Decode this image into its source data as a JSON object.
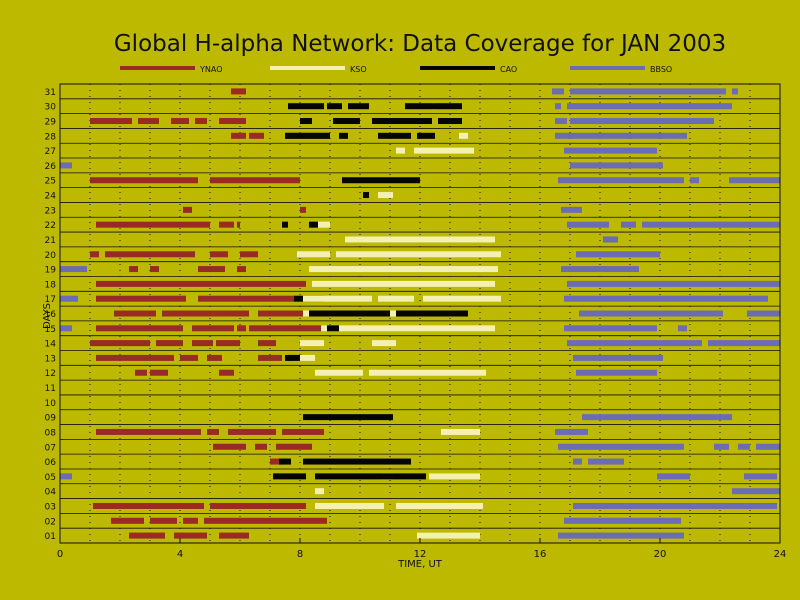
{
  "colors": {
    "background": "#bdb800",
    "YNAO": "#9a2a24",
    "KSO": "#f4f0b0",
    "CAO": "#050505",
    "BBSO": "#6b6cb4"
  },
  "chart_data": {
    "type": "timeline",
    "title": "Global H-alpha Network: Data Coverage for JAN 2003",
    "xlabel": "TIME, UT",
    "ylabel": "DAYS",
    "xlim": [
      0,
      24
    ],
    "ylim": [
      0.5,
      31.5
    ],
    "x_ticks": [
      0,
      4,
      8,
      12,
      16,
      20,
      24
    ],
    "y_tick_labels": [
      "01",
      "02",
      "03",
      "04",
      "05",
      "06",
      "07",
      "08",
      "09",
      "10",
      "11",
      "12",
      "13",
      "14",
      "15",
      "16",
      "17",
      "18",
      "19",
      "20",
      "21",
      "22",
      "23",
      "24",
      "25",
      "26",
      "27",
      "28",
      "29",
      "30",
      "31"
    ],
    "grid": "vertical-dotted-every-hour, horizontal-solid-every-day",
    "legend_placement": "top",
    "legend": [
      "YNAO",
      "KSO",
      "CAO",
      "BBSO"
    ],
    "series": [
      {
        "name": "YNAO",
        "intervals": {
          "1": [
            [
              2.3,
              3.5
            ],
            [
              3.8,
              4.9
            ],
            [
              5.3,
              6.3
            ]
          ],
          "2": [
            [
              1.7,
              2.8
            ],
            [
              3.0,
              3.9
            ],
            [
              4.1,
              4.6
            ],
            [
              4.8,
              8.9
            ]
          ],
          "3": [
            [
              1.1,
              4.8
            ],
            [
              5.0,
              8.2
            ]
          ],
          "6": [
            [
              7.0,
              7.5
            ]
          ],
          "7": [
            [
              5.1,
              6.2
            ],
            [
              6.5,
              6.9
            ],
            [
              7.2,
              8.4
            ]
          ],
          "8": [
            [
              1.2,
              4.7
            ],
            [
              4.9,
              5.3
            ],
            [
              5.6,
              7.2
            ],
            [
              7.4,
              8.8
            ]
          ],
          "12": [
            [
              2.5,
              2.9
            ],
            [
              3.0,
              3.6
            ],
            [
              5.3,
              5.8
            ]
          ],
          "13": [
            [
              1.2,
              3.8
            ],
            [
              4.0,
              4.6
            ],
            [
              4.9,
              5.4
            ],
            [
              6.6,
              7.4
            ],
            [
              7.6,
              8.1
            ]
          ],
          "14": [
            [
              1.0,
              3.0
            ],
            [
              3.2,
              4.1
            ],
            [
              4.4,
              5.1
            ],
            [
              5.2,
              6.0
            ],
            [
              6.6,
              7.2
            ]
          ],
          "15": [
            [
              1.2,
              4.1
            ],
            [
              4.4,
              5.8
            ],
            [
              5.9,
              6.2
            ],
            [
              6.3,
              8.8
            ]
          ],
          "16": [
            [
              1.8,
              3.2
            ],
            [
              3.4,
              6.3
            ],
            [
              6.6,
              8.8
            ]
          ],
          "17": [
            [
              1.2,
              4.2
            ],
            [
              4.6,
              8.8
            ]
          ],
          "18": [
            [
              1.2,
              8.2
            ]
          ],
          "19": [
            [
              2.3,
              2.6
            ],
            [
              3.0,
              3.3
            ],
            [
              4.6,
              5.5
            ],
            [
              5.9,
              6.2
            ]
          ],
          "20": [
            [
              1.0,
              1.3
            ],
            [
              1.5,
              4.5
            ],
            [
              5.0,
              5.6
            ],
            [
              6.0,
              6.6
            ]
          ],
          "22": [
            [
              1.2,
              5.0
            ],
            [
              5.3,
              5.8
            ],
            [
              5.9,
              6.0
            ]
          ],
          "23": [
            [
              4.1,
              4.4
            ],
            [
              8.0,
              8.2
            ]
          ],
          "25": [
            [
              1.0,
              4.6
            ],
            [
              5.0,
              8.0
            ]
          ],
          "28": [
            [
              5.7,
              6.2
            ],
            [
              6.3,
              6.8
            ],
            [
              7.5,
              9.0
            ]
          ],
          "29": [
            [
              1.0,
              2.4
            ],
            [
              2.6,
              3.3
            ],
            [
              3.7,
              4.3
            ],
            [
              4.5,
              4.9
            ],
            [
              5.3,
              6.2
            ],
            [
              8.1,
              8.2
            ]
          ],
          "31": [
            [
              5.7,
              6.2
            ]
          ]
        }
      },
      {
        "name": "KSO",
        "intervals": {
          "1": [
            [
              11.9,
              14.0
            ]
          ],
          "3": [
            [
              8.5,
              10.8
            ],
            [
              11.2,
              14.1
            ]
          ],
          "4": [
            [
              8.5,
              8.8
            ]
          ],
          "5": [
            [
              10.7,
              11.1
            ],
            [
              12.3,
              14.0
            ]
          ],
          "8": [
            [
              12.7,
              14.0
            ]
          ],
          "12": [
            [
              8.5,
              10.1
            ],
            [
              10.3,
              14.2
            ]
          ],
          "13": [
            [
              7.8,
              8.5
            ]
          ],
          "14": [
            [
              8.0,
              8.8
            ],
            [
              10.4,
              11.2
            ]
          ],
          "15": [
            [
              8.7,
              14.5
            ]
          ],
          "16": [
            [
              8.1,
              9.2
            ],
            [
              9.4,
              13.5
            ]
          ],
          "17": [
            [
              7.8,
              10.4
            ],
            [
              10.6,
              11.8
            ],
            [
              12.1,
              14.7
            ]
          ],
          "18": [
            [
              8.4,
              14.5
            ]
          ],
          "19": [
            [
              8.3,
              14.6
            ]
          ],
          "20": [
            [
              7.9,
              9.0
            ],
            [
              9.2,
              14.7
            ]
          ],
          "21": [
            [
              9.5,
              14.5
            ]
          ],
          "22": [
            [
              8.5,
              9.0
            ]
          ],
          "24": [
            [
              10.6,
              11.1
            ]
          ],
          "27": [
            [
              11.2,
              11.5
            ],
            [
              11.8,
              13.8
            ]
          ],
          "28": [
            [
              13.3,
              13.6
            ]
          ],
          "30": [
            [
              12.4,
              12.5
            ]
          ]
        }
      },
      {
        "name": "CAO",
        "intervals": {
          "5": [
            [
              7.1,
              8.2
            ],
            [
              8.5,
              12.2
            ]
          ],
          "6": [
            [
              7.3,
              7.7
            ],
            [
              8.1,
              11.7
            ]
          ],
          "9": [
            [
              8.1,
              11.1
            ]
          ],
          "13": [
            [
              7.5,
              8.0
            ]
          ],
          "15": [
            [
              8.9,
              9.3
            ]
          ],
          "16": [
            [
              8.3,
              11.0
            ],
            [
              11.2,
              13.6
            ]
          ],
          "17": [
            [
              7.8,
              8.1
            ]
          ],
          "22": [
            [
              7.4,
              7.6
            ],
            [
              8.3,
              8.6
            ]
          ],
          "24": [
            [
              10.1,
              10.3
            ]
          ],
          "25": [
            [
              9.4,
              12.0
            ]
          ],
          "28": [
            [
              7.5,
              9.0
            ],
            [
              9.3,
              9.6
            ],
            [
              10.6,
              11.7
            ],
            [
              11.9,
              12.5
            ]
          ],
          "29": [
            [
              8.0,
              8.4
            ],
            [
              9.1,
              10.0
            ],
            [
              10.4,
              12.4
            ],
            [
              12.6,
              13.4
            ]
          ],
          "30": [
            [
              7.6,
              8.8
            ],
            [
              8.9,
              9.4
            ],
            [
              9.6,
              10.3
            ],
            [
              11.5,
              13.4
            ]
          ]
        }
      },
      {
        "name": "BBSO",
        "intervals": {
          "1": [
            [
              16.6,
              20.8
            ]
          ],
          "2": [
            [
              16.8,
              20.7
            ]
          ],
          "3": [
            [
              17.1,
              23.9
            ]
          ],
          "4": [
            [
              22.4,
              24.0
            ]
          ],
          "5": [
            [
              0.0,
              0.4
            ],
            [
              19.9,
              21.0
            ],
            [
              22.8,
              23.9
            ]
          ],
          "6": [
            [
              17.1,
              17.4
            ],
            [
              17.6,
              18.8
            ]
          ],
          "7": [
            [
              16.6,
              20.8
            ],
            [
              21.8,
              22.3
            ],
            [
              22.6,
              23.0
            ],
            [
              23.2,
              24.0
            ]
          ],
          "8": [
            [
              16.5,
              17.6
            ]
          ],
          "9": [
            [
              17.4,
              22.4
            ]
          ],
          "12": [
            [
              17.2,
              19.9
            ]
          ],
          "13": [
            [
              17.1,
              20.1
            ]
          ],
          "14": [
            [
              16.9,
              21.4
            ],
            [
              21.6,
              24.0
            ]
          ],
          "15": [
            [
              0.0,
              0.4
            ],
            [
              16.8,
              19.9
            ],
            [
              20.6,
              20.9
            ]
          ],
          "16": [
            [
              17.3,
              22.1
            ],
            [
              22.9,
              24.0
            ]
          ],
          "17": [
            [
              0.0,
              0.6
            ],
            [
              16.8,
              23.6
            ]
          ],
          "18": [
            [
              16.9,
              24.0
            ]
          ],
          "19": [
            [
              0.0,
              0.9
            ],
            [
              16.7,
              19.3
            ]
          ],
          "20": [
            [
              17.2,
              20.0
            ]
          ],
          "21": [
            [
              18.1,
              18.6
            ]
          ],
          "22": [
            [
              16.9,
              18.3
            ],
            [
              18.7,
              19.2
            ],
            [
              19.4,
              24.0
            ]
          ],
          "23": [
            [
              16.7,
              17.4
            ]
          ],
          "25": [
            [
              16.6,
              20.8
            ],
            [
              21.0,
              21.3
            ],
            [
              22.3,
              24.0
            ]
          ],
          "26": [
            [
              0.0,
              0.4
            ],
            [
              17.0,
              20.1
            ]
          ],
          "27": [
            [
              16.8,
              19.9
            ]
          ],
          "28": [
            [
              16.5,
              20.9
            ]
          ],
          "29": [
            [
              16.5,
              16.9
            ],
            [
              17.0,
              21.8
            ]
          ],
          "30": [
            [
              16.5,
              16.7
            ],
            [
              16.9,
              22.4
            ]
          ],
          "31": [
            [
              16.4,
              16.8
            ],
            [
              17.0,
              22.2
            ],
            [
              22.4,
              22.6
            ]
          ]
        }
      }
    ]
  }
}
